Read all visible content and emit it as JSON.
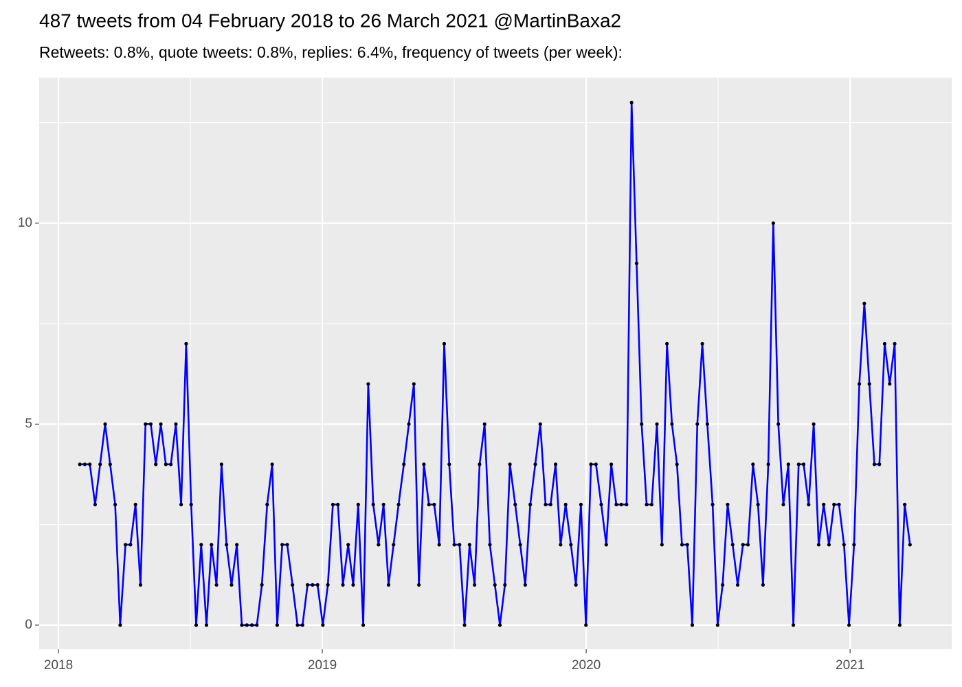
{
  "chart_data": {
    "type": "line",
    "title": "487 tweets from 04 February 2018 to 26 March 2021 @MartinBaxa2",
    "subtitle": "Retweets: 0.8%, quote tweets: 0.8%, replies: 6.4%, frequency of tweets (per week):",
    "x": [
      2018.081,
      2018.1,
      2018.119,
      2018.139,
      2018.158,
      2018.177,
      2018.196,
      2018.215,
      2018.234,
      2018.254,
      2018.273,
      2018.292,
      2018.311,
      2018.33,
      2018.35,
      2018.369,
      2018.388,
      2018.407,
      2018.426,
      2018.445,
      2018.465,
      2018.484,
      2018.503,
      2018.522,
      2018.541,
      2018.561,
      2018.58,
      2018.599,
      2018.618,
      2018.637,
      2018.656,
      2018.676,
      2018.695,
      2018.714,
      2018.733,
      2018.752,
      2018.771,
      2018.791,
      2018.81,
      2018.829,
      2018.848,
      2018.867,
      2018.887,
      2018.906,
      2018.925,
      2018.944,
      2018.963,
      2018.982,
      2019.002,
      2019.021,
      2019.04,
      2019.059,
      2019.078,
      2019.098,
      2019.117,
      2019.136,
      2019.155,
      2019.174,
      2019.193,
      2019.213,
      2019.232,
      2019.251,
      2019.27,
      2019.289,
      2019.309,
      2019.328,
      2019.347,
      2019.366,
      2019.385,
      2019.404,
      2019.424,
      2019.443,
      2019.462,
      2019.481,
      2019.5,
      2019.52,
      2019.539,
      2019.558,
      2019.577,
      2019.596,
      2019.615,
      2019.635,
      2019.654,
      2019.673,
      2019.692,
      2019.711,
      2019.731,
      2019.75,
      2019.769,
      2019.788,
      2019.807,
      2019.826,
      2019.846,
      2019.865,
      2019.884,
      2019.903,
      2019.922,
      2019.942,
      2019.961,
      2019.98,
      2019.999,
      2020.018,
      2020.037,
      2020.057,
      2020.076,
      2020.095,
      2020.114,
      2020.133,
      2020.153,
      2020.172,
      2020.191,
      2020.21,
      2020.229,
      2020.248,
      2020.268,
      2020.287,
      2020.306,
      2020.325,
      2020.344,
      2020.363,
      2020.383,
      2020.402,
      2020.421,
      2020.44,
      2020.459,
      2020.479,
      2020.498,
      2020.517,
      2020.536,
      2020.555,
      2020.574,
      2020.594,
      2020.613,
      2020.632,
      2020.651,
      2020.67,
      2020.69,
      2020.709,
      2020.728,
      2020.747,
      2020.766,
      2020.785,
      2020.805,
      2020.824,
      2020.843,
      2020.862,
      2020.881,
      2020.9,
      2020.92,
      2020.939,
      2020.958,
      2020.977,
      2020.996,
      2021.015,
      2021.035,
      2021.054,
      2021.073,
      2021.092,
      2021.111,
      2021.131,
      2021.15,
      2021.169,
      2021.188,
      2021.207,
      2021.227
    ],
    "series": [
      {
        "color": "#0000ff",
        "point_color": "#000000",
        "values": [
          4,
          4,
          4,
          3,
          4,
          5,
          4,
          3,
          0,
          2,
          2,
          3,
          1,
          5,
          5,
          4,
          5,
          4,
          4,
          5,
          3,
          7,
          3,
          0,
          2,
          0,
          2,
          1,
          4,
          2,
          1,
          2,
          0,
          0,
          0,
          0,
          1,
          3,
          4,
          0,
          2,
          2,
          1,
          0,
          0,
          1,
          1,
          1,
          0,
          1,
          3,
          3,
          1,
          2,
          1,
          3,
          0,
          6,
          3,
          2,
          3,
          1,
          2,
          3,
          4,
          5,
          6,
          1,
          4,
          3,
          3,
          2,
          7,
          4,
          2,
          2,
          0,
          2,
          1,
          4,
          5,
          2,
          1,
          0,
          1,
          4,
          3,
          2,
          1,
          3,
          4,
          5,
          3,
          3,
          4,
          2,
          3,
          2,
          1,
          3,
          0,
          4,
          4,
          3,
          2,
          4,
          3,
          3,
          3,
          13,
          9,
          5,
          3,
          3,
          5,
          2,
          7,
          5,
          4,
          2,
          2,
          0,
          5,
          7,
          5,
          3,
          0,
          1,
          3,
          2,
          1,
          2,
          2,
          4,
          3,
          1,
          4,
          10,
          5,
          3,
          4,
          0,
          4,
          4,
          3,
          5,
          2,
          3,
          2,
          3,
          3,
          2,
          0,
          2,
          6,
          8,
          6,
          4,
          4,
          7,
          6,
          7,
          0,
          3,
          2
        ]
      }
    ],
    "xlim": [
      2017.927,
      2021.385
    ],
    "ylim": [
      -0.6,
      13.62
    ],
    "xticks": [
      2018,
      2019,
      2020,
      2021
    ],
    "yticks": [
      0,
      5,
      10
    ],
    "xminor": [
      2018.5,
      2019.5,
      2020.5
    ],
    "yminor": [
      2.5,
      7.5,
      12.5
    ],
    "grid": true
  }
}
